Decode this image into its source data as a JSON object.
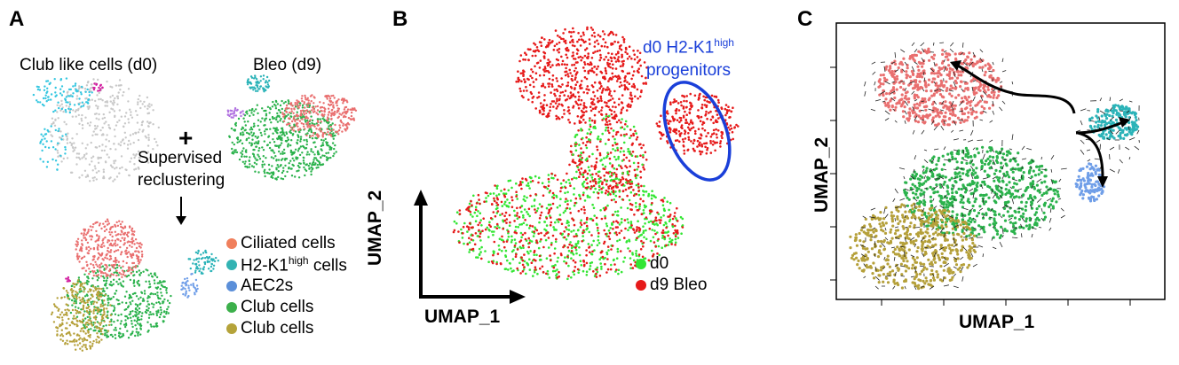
{
  "panels": {
    "a": {
      "label": "A",
      "title_left": "Club like cells (d0)",
      "title_right": "Bleo (d9)",
      "plus": "+",
      "step_line1": "Supervised",
      "step_line2": "reclustering",
      "legend": [
        {
          "text": "Ciliated cells",
          "sup": "",
          "suffix": "",
          "color": "#f07f5c"
        },
        {
          "text": "H2-K1",
          "sup": "high",
          "suffix": " cells",
          "color": "#33b3b3"
        },
        {
          "text": "AEC2s",
          "sup": "",
          "suffix": "",
          "color": "#5b8fd9"
        },
        {
          "text": "Club cells",
          "sup": "",
          "suffix": "",
          "color": "#3cb04b"
        },
        {
          "text": "Club cells",
          "sup": "",
          "suffix": "",
          "color": "#b5a33a"
        }
      ]
    },
    "b": {
      "label": "B",
      "annotation_line1": "d0 H2-K1",
      "annotation_sup": "high",
      "annotation_line2": "progenitors",
      "xlabel": "UMAP_1",
      "ylabel": "UMAP_2",
      "legend": [
        {
          "text": "d0",
          "color": "#33e633"
        },
        {
          "text": "d9 Bleo",
          "color": "#e61a1a"
        }
      ]
    },
    "c": {
      "label": "C",
      "xlabel": "UMAP_1",
      "ylabel": "UMAP_2"
    }
  },
  "colors": {
    "ciliated": "#e96f6f",
    "h2k1": "#2bb3b8",
    "aec2": "#6f9ee8",
    "club_green": "#2bb24c",
    "club_olive": "#b5a03a",
    "grey": "#c8c8c8",
    "cyan_d0": "#33c6e0",
    "magenta": "#d21fa0",
    "purple": "#b070e0",
    "d0_green": "#33e633",
    "d9_red": "#e61a1a",
    "annotation_blue": "#1a3fd9"
  }
}
